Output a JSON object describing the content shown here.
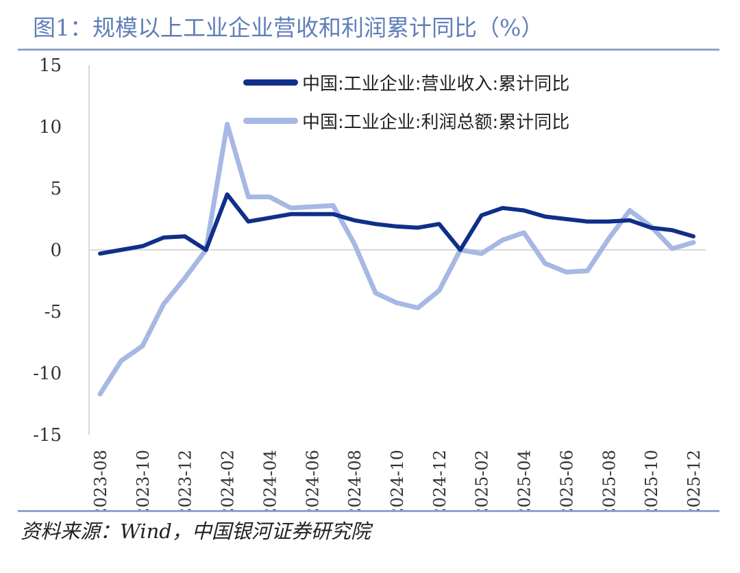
{
  "figure": {
    "title": "图1：规模以上工业企业营收和利润累计同比（%）",
    "source": "资料来源：Wind，中国银河证券研究院"
  },
  "chart_data": {
    "type": "line",
    "y_ticks": [
      "15",
      "10",
      "5",
      "0",
      "-5",
      "-10",
      "-15"
    ],
    "ylim": [
      -15,
      15
    ],
    "x_tick_labels": [
      "2023-08",
      "2023-10",
      "2023-12",
      "2024-02",
      "2024-04",
      "2024-06",
      "2024-08",
      "2024-10",
      "2024-12",
      "2025-02",
      "2025-04",
      "2025-06",
      "2025-08",
      "2025-10",
      "2025-12"
    ],
    "x": [
      "2023-08",
      "2023-09",
      "2023-10",
      "2023-11",
      "2023-12",
      "2024-01",
      "2024-02",
      "2024-03",
      "2024-04",
      "2024-05",
      "2024-06",
      "2024-07",
      "2024-08",
      "2024-09",
      "2024-10",
      "2024-11",
      "2024-12",
      "2025-01",
      "2025-02",
      "2025-03",
      "2025-04",
      "2025-05",
      "2025-06",
      "2025-07",
      "2025-08",
      "2025-09",
      "2025-10",
      "2025-11",
      "2025-12"
    ],
    "legend_placement": "top-right",
    "series": [
      {
        "name": "中国:工业企业:营业收入:累计同比",
        "color": "#0f2f8a",
        "values": [
          -0.3,
          0.0,
          0.3,
          1.0,
          1.1,
          0.0,
          4.5,
          2.3,
          2.6,
          2.9,
          2.9,
          2.9,
          2.4,
          2.1,
          1.9,
          1.8,
          2.1,
          0.0,
          2.8,
          3.4,
          3.2,
          2.7,
          2.5,
          2.3,
          2.3,
          2.4,
          1.8,
          1.6,
          1.1
        ]
      },
      {
        "name": "中国:工业企业:利润总额:累计同比",
        "color": "#a6b8e3",
        "values": [
          -11.7,
          -9.0,
          -7.8,
          -4.4,
          -2.3,
          0.0,
          10.2,
          4.3,
          4.3,
          3.4,
          3.5,
          3.6,
          0.5,
          -3.5,
          -4.3,
          -4.7,
          -3.3,
          0.0,
          -0.3,
          0.8,
          1.4,
          -1.1,
          -1.8,
          -1.7,
          0.9,
          3.2,
          1.9,
          0.1,
          0.6
        ]
      }
    ]
  }
}
